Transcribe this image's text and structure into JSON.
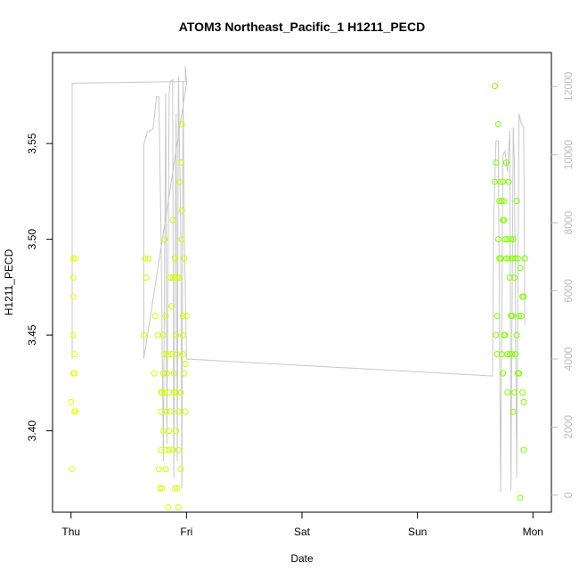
{
  "chart_data": {
    "type": "scatter",
    "title": "ATOM3 Northeast_Pacific_1 H1211_PECD",
    "xlabel": "Date",
    "ylabel": "H1211_PECD",
    "x_tick_labels": [
      "Thu",
      "Fri",
      "Sat",
      "Sun",
      "Mon"
    ],
    "x_ticks_days": [
      0,
      1,
      2,
      3,
      4
    ],
    "xlim_days": [
      -0.16,
      4.16
    ],
    "ylim": [
      3.3575,
      3.5975
    ],
    "y_ticks": [
      3.4,
      3.45,
      3.5,
      3.55
    ],
    "y_tick_labels": [
      "3.40",
      "3.45",
      "3.50",
      "3.55"
    ],
    "right_axis": {
      "ylim": [
        -500,
        13000
      ],
      "ticks": [
        0,
        2000,
        4000,
        6000,
        8000,
        10000,
        12000
      ],
      "tick_labels": [
        "0",
        "2000",
        "4000",
        "6000",
        "8000",
        "10000",
        "12000"
      ],
      "color": "#bdbdbd"
    },
    "series": [
      {
        "marker": "open-circle",
        "color_range": [
          "#e6ff00",
          "#7fff00"
        ],
        "points": [
          [
            0.0,
            3.415
          ],
          [
            0.01,
            3.38
          ],
          [
            0.02,
            3.43
          ],
          [
            0.02,
            3.47
          ],
          [
            0.02,
            3.45
          ],
          [
            0.02,
            3.48
          ],
          [
            0.02,
            3.49
          ],
          [
            0.03,
            3.41
          ],
          [
            0.03,
            3.44
          ],
          [
            0.03,
            3.43
          ],
          [
            0.04,
            3.41
          ],
          [
            0.04,
            3.49
          ],
          [
            0.63,
            3.45
          ],
          [
            0.64,
            3.49
          ],
          [
            0.65,
            3.48
          ],
          [
            0.67,
            3.49
          ],
          [
            0.72,
            3.43
          ],
          [
            0.73,
            3.46
          ],
          [
            0.75,
            3.45
          ],
          [
            0.76,
            3.38
          ],
          [
            0.77,
            3.37
          ],
          [
            0.78,
            3.42
          ],
          [
            0.78,
            3.39
          ],
          [
            0.78,
            3.41
          ],
          [
            0.79,
            3.42
          ],
          [
            0.79,
            3.37
          ],
          [
            0.8,
            3.4
          ],
          [
            0.8,
            3.43
          ],
          [
            0.8,
            3.45
          ],
          [
            0.81,
            3.5
          ],
          [
            0.81,
            3.44
          ],
          [
            0.81,
            3.42
          ],
          [
            0.82,
            3.38
          ],
          [
            0.82,
            3.46
          ],
          [
            0.82,
            3.39
          ],
          [
            0.83,
            3.41
          ],
          [
            0.83,
            3.43
          ],
          [
            0.84,
            3.44
          ],
          [
            0.84,
            3.36
          ],
          [
            0.85,
            3.39
          ],
          [
            0.85,
            3.4
          ],
          [
            0.85,
            3.42
          ],
          [
            0.86,
            3.48
          ],
          [
            0.86,
            3.41
          ],
          [
            0.87,
            3.44
          ],
          [
            0.87,
            3.465
          ],
          [
            0.88,
            3.48
          ],
          [
            0.88,
            3.51
          ],
          [
            0.88,
            3.39
          ],
          [
            0.89,
            3.42
          ],
          [
            0.89,
            3.43
          ],
          [
            0.9,
            3.37
          ],
          [
            0.9,
            3.48
          ],
          [
            0.9,
            3.49
          ],
          [
            0.91,
            3.4
          ],
          [
            0.91,
            3.42
          ],
          [
            0.91,
            3.45
          ],
          [
            0.92,
            3.37
          ],
          [
            0.92,
            3.48
          ],
          [
            0.92,
            3.44
          ],
          [
            0.93,
            3.36
          ],
          [
            0.93,
            3.41
          ],
          [
            0.93,
            3.39
          ],
          [
            0.94,
            3.53
          ],
          [
            0.94,
            3.48
          ],
          [
            0.95,
            3.54
          ],
          [
            0.95,
            3.42
          ],
          [
            0.95,
            3.38
          ],
          [
            0.96,
            3.5
          ],
          [
            0.96,
            3.56
          ],
          [
            0.96,
            3.515
          ],
          [
            0.97,
            3.45
          ],
          [
            0.97,
            3.46
          ],
          [
            0.97,
            3.44
          ],
          [
            0.98,
            3.49
          ],
          [
            0.98,
            3.43
          ],
          [
            0.99,
            3.435
          ],
          [
            0.99,
            3.41
          ],
          [
            1.0,
            3.46
          ],
          [
            3.67,
            3.58
          ],
          [
            3.67,
            3.53
          ],
          [
            3.68,
            3.54
          ],
          [
            3.68,
            3.45
          ],
          [
            3.69,
            3.44
          ],
          [
            3.69,
            3.46
          ],
          [
            3.7,
            3.5
          ],
          [
            3.7,
            3.56
          ],
          [
            3.71,
            3.49
          ],
          [
            3.71,
            3.52
          ],
          [
            3.72,
            3.53
          ],
          [
            3.72,
            3.49
          ],
          [
            3.73,
            3.52
          ],
          [
            3.73,
            3.44
          ],
          [
            3.74,
            3.51
          ],
          [
            3.74,
            3.53
          ],
          [
            3.74,
            3.43
          ],
          [
            3.75,
            3.45
          ],
          [
            3.75,
            3.51
          ],
          [
            3.75,
            3.52
          ],
          [
            3.76,
            3.5
          ],
          [
            3.76,
            3.45
          ],
          [
            3.77,
            3.49
          ],
          [
            3.77,
            3.54
          ],
          [
            3.78,
            3.42
          ],
          [
            3.78,
            3.44
          ],
          [
            3.78,
            3.5
          ],
          [
            3.79,
            3.49
          ],
          [
            3.79,
            3.53
          ],
          [
            3.8,
            3.48
          ],
          [
            3.8,
            3.44
          ],
          [
            3.81,
            3.46
          ],
          [
            3.81,
            3.5
          ],
          [
            3.82,
            3.46
          ],
          [
            3.82,
            3.49
          ],
          [
            3.82,
            3.44
          ],
          [
            3.83,
            3.41
          ],
          [
            3.83,
            3.5
          ],
          [
            3.84,
            3.48
          ],
          [
            3.84,
            3.42
          ],
          [
            3.85,
            3.49
          ],
          [
            3.85,
            3.44
          ],
          [
            3.86,
            3.45
          ],
          [
            3.86,
            3.52
          ],
          [
            3.87,
            3.43
          ],
          [
            3.87,
            3.49
          ],
          [
            3.88,
            3.43
          ],
          [
            3.88,
            3.46
          ],
          [
            3.89,
            3.365
          ],
          [
            3.89,
            3.485
          ],
          [
            3.9,
            3.46
          ],
          [
            3.91,
            3.47
          ],
          [
            3.91,
            3.42
          ],
          [
            3.92,
            3.47
          ],
          [
            3.92,
            3.39
          ],
          [
            3.92,
            3.415
          ],
          [
            3.93,
            3.49
          ],
          [
            3.93,
            3.49
          ]
        ]
      },
      {
        "marker": "line",
        "axis": "right",
        "color": "#c8c8c8",
        "points": [
          [
            0.01,
            4000
          ],
          [
            0.01,
            12100
          ],
          [
            0.99,
            12150
          ],
          [
            0.99,
            12600
          ],
          [
            1.0,
            12100
          ],
          [
            0.63,
            4000
          ],
          [
            0.63,
            10300
          ],
          [
            0.66,
            10650
          ],
          [
            0.68,
            10700
          ],
          [
            0.71,
            10750
          ],
          [
            0.74,
            11700
          ],
          [
            0.76,
            11700
          ],
          [
            0.78,
            7500
          ],
          [
            0.8,
            1000
          ],
          [
            0.82,
            11800
          ],
          [
            0.83,
            1500
          ],
          [
            0.85,
            11800
          ],
          [
            0.86,
            12150
          ],
          [
            0.88,
            12200
          ],
          [
            0.89,
            500
          ],
          [
            0.91,
            11200
          ],
          [
            0.92,
            1000
          ],
          [
            0.93,
            12300
          ],
          [
            0.95,
            8000
          ],
          [
            0.96,
            200
          ],
          [
            0.97,
            12150
          ],
          [
            0.98,
            7800
          ],
          [
            1.0,
            4000
          ],
          [
            3.65,
            3500
          ],
          [
            3.66,
            8000
          ],
          [
            3.68,
            10400
          ],
          [
            3.7,
            10400
          ],
          [
            3.72,
            100
          ],
          [
            3.74,
            10000
          ],
          [
            3.76,
            10100
          ],
          [
            3.78,
            9500
          ],
          [
            3.8,
            10700
          ],
          [
            3.81,
            150
          ],
          [
            3.83,
            10800
          ],
          [
            3.84,
            9800
          ],
          [
            3.86,
            500
          ],
          [
            3.88,
            11200
          ],
          [
            3.9,
            10900
          ],
          [
            3.92,
            10800
          ],
          [
            3.93,
            5000
          ]
        ]
      }
    ],
    "grid": false,
    "legend": "none"
  }
}
